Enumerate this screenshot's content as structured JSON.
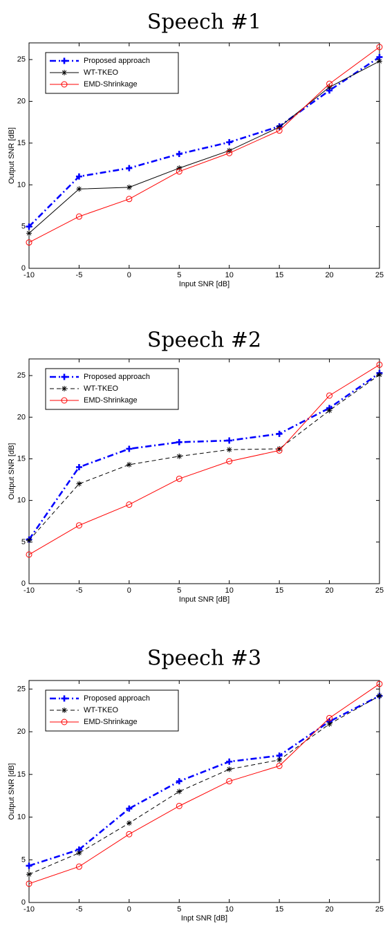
{
  "chart_data": [
    {
      "type": "line",
      "title": "Speech #1",
      "xlabel": "Input SNR [dB]",
      "ylabel": "Output SNR [dB]",
      "xlim": [
        -10,
        25
      ],
      "ylim": [
        0,
        27
      ],
      "xticks": [
        -10,
        -5,
        0,
        5,
        10,
        15,
        20,
        25
      ],
      "yticks": [
        0,
        5,
        10,
        15,
        20,
        25
      ],
      "x": [
        -10,
        -5,
        0,
        5,
        10,
        15,
        20,
        25
      ],
      "legend_position": "top-left",
      "grid": false,
      "series": [
        {
          "name": "Proposed approach",
          "values": [
            5.0,
            11.0,
            12.0,
            13.7,
            15.1,
            17.0,
            21.3,
            25.3
          ],
          "color": "#0000ff",
          "dash": "dashdot",
          "marker": "plus"
        },
        {
          "name": "WT-TKEO",
          "values": [
            4.2,
            9.5,
            9.7,
            12.0,
            14.1,
            16.9,
            21.7,
            24.8
          ],
          "color": "#000000",
          "dash": "solid",
          "marker": "asterisk"
        },
        {
          "name": "EMD-Shrinkage",
          "values": [
            3.1,
            6.2,
            8.3,
            11.6,
            13.8,
            16.5,
            22.1,
            26.5
          ],
          "color": "#ff0000",
          "dash": "solid",
          "marker": "circle"
        }
      ]
    },
    {
      "type": "line",
      "title": "Speech #2",
      "xlabel": "Input SNR [dB]",
      "ylabel": "Output SNR [dB]",
      "xlim": [
        -10,
        25
      ],
      "ylim": [
        0,
        27
      ],
      "xticks": [
        -10,
        -5,
        0,
        5,
        10,
        15,
        20,
        25
      ],
      "yticks": [
        0,
        5,
        10,
        15,
        20,
        25
      ],
      "x": [
        -10,
        -5,
        0,
        5,
        10,
        15,
        20,
        25
      ],
      "legend_position": "top-left",
      "grid": false,
      "series": [
        {
          "name": "Proposed approach",
          "values": [
            5.3,
            14.0,
            16.2,
            17.0,
            17.2,
            18.0,
            21.1,
            25.3
          ],
          "color": "#0000ff",
          "dash": "dashdot",
          "marker": "plus"
        },
        {
          "name": "WT-TKEO",
          "values": [
            5.2,
            12.0,
            14.3,
            15.3,
            16.1,
            16.2,
            20.8,
            25.1
          ],
          "color": "#000000",
          "dash": "dashed",
          "marker": "asterisk"
        },
        {
          "name": "EMD-Shrinkage",
          "values": [
            3.5,
            7.0,
            9.5,
            12.6,
            14.7,
            16.0,
            22.6,
            26.3
          ],
          "color": "#ff0000",
          "dash": "solid",
          "marker": "circle"
        }
      ]
    },
    {
      "type": "line",
      "title": "Speech #3",
      "xlabel": "Inpt SNR [dB]",
      "ylabel": "Output SNR [dB]",
      "xlim": [
        -10,
        25
      ],
      "ylim": [
        0,
        26
      ],
      "xticks": [
        -10,
        -5,
        0,
        5,
        10,
        15,
        20,
        25
      ],
      "yticks": [
        0,
        5,
        10,
        15,
        20,
        25
      ],
      "x": [
        -10,
        -5,
        0,
        5,
        10,
        15,
        20,
        25
      ],
      "legend_position": "top-left",
      "grid": false,
      "series": [
        {
          "name": "Proposed approach",
          "values": [
            4.3,
            6.2,
            11.0,
            14.2,
            16.5,
            17.2,
            21.2,
            24.2
          ],
          "color": "#0000ff",
          "dash": "dashdot",
          "marker": "plus"
        },
        {
          "name": "WT-TKEO",
          "values": [
            3.3,
            5.8,
            9.3,
            13.0,
            15.6,
            16.7,
            20.9,
            24.2
          ],
          "color": "#000000",
          "dash": "dashed",
          "marker": "asterisk"
        },
        {
          "name": "EMD-Shrinkage",
          "values": [
            2.2,
            4.2,
            8.0,
            11.3,
            14.2,
            16.0,
            21.6,
            25.6
          ],
          "color": "#ff0000",
          "dash": "solid",
          "marker": "circle"
        }
      ]
    }
  ]
}
